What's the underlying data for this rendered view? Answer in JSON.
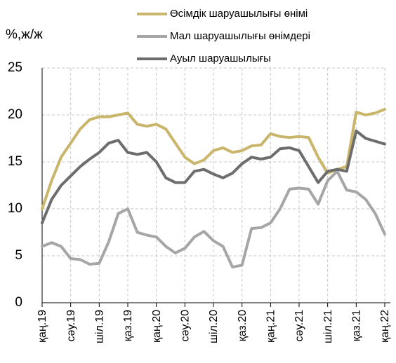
{
  "chart_data": {
    "type": "line",
    "y_label": "%,ж/ж",
    "categories": [
      "қаң.19",
      null,
      null,
      "сәу.19",
      null,
      null,
      "шіл.19",
      null,
      null,
      "қаз.19",
      null,
      null,
      "қаң.20",
      null,
      null,
      "сәу.20",
      null,
      null,
      "шіл.20",
      null,
      null,
      "қаз.20",
      null,
      null,
      "қаң.21",
      null,
      null,
      "сәу.21",
      null,
      null,
      "шіл.21",
      null,
      null,
      "қаз.21",
      null,
      null,
      "қаң.22"
    ],
    "series": [
      {
        "name": "Өсімдік шаруашылығы өнімі",
        "color": "#c9b66b",
        "values": [
          10,
          13,
          15.5,
          17,
          18.5,
          19.5,
          19.8,
          19.8,
          20,
          20.2,
          19,
          18.8,
          19,
          18.5,
          17,
          15.5,
          14.8,
          15.2,
          16.2,
          16.5,
          16,
          16.2,
          16.7,
          16.8,
          18,
          17.7,
          17.6,
          17.7,
          17.6,
          15.5,
          13.8,
          14.2,
          14.5,
          20.3,
          20,
          20.2,
          20.6
        ]
      },
      {
        "name": "Мал шаруашылығы өнімдері",
        "color": "#a6a6a6",
        "values": [
          6,
          6.4,
          6,
          4.7,
          4.6,
          4.1,
          4.2,
          6.5,
          9.5,
          10,
          7.5,
          7.2,
          7,
          6,
          5.3,
          5.8,
          7,
          7.6,
          6.6,
          6,
          3.8,
          4,
          7.9,
          8,
          8.5,
          10,
          12.1,
          12.2,
          12.1,
          10.5,
          13,
          14,
          12,
          11.8,
          11,
          9.5,
          7.3
        ]
      },
      {
        "name": "Ауыл шаруашылығы",
        "color": "#6d6d6d",
        "values": [
          8.5,
          11,
          12.5,
          13.5,
          14.5,
          15.3,
          16,
          17,
          17.3,
          16,
          15.8,
          16,
          15,
          13.3,
          12.8,
          12.8,
          14,
          14.2,
          13.7,
          13.3,
          13.8,
          14.8,
          15.5,
          15.3,
          15.5,
          16.4,
          16.5,
          16.2,
          14.5,
          12.8,
          14,
          14.2,
          14,
          18.3,
          17.5,
          17.2,
          16.9
        ]
      }
    ],
    "ylim": [
      0,
      25
    ],
    "yticks": [
      0,
      5,
      10,
      15,
      20,
      25
    ],
    "grid": true
  }
}
